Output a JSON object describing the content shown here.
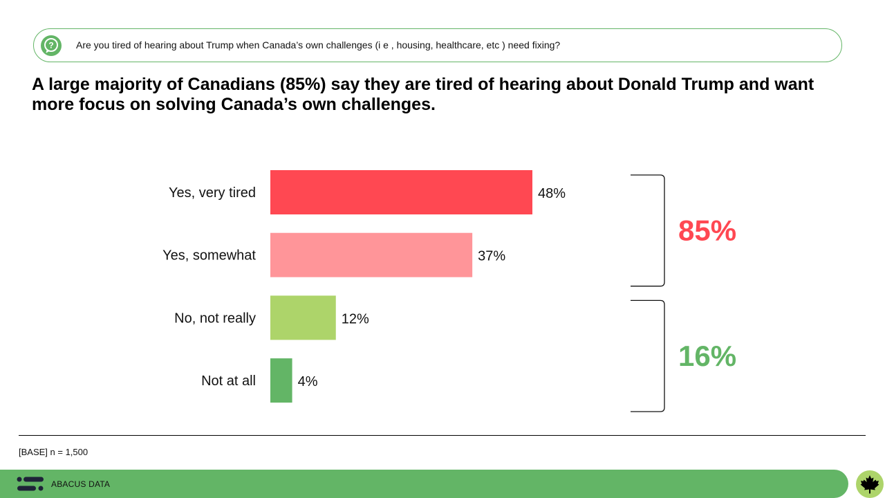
{
  "question": {
    "icon": "question-icon",
    "text": "Are you tired of hearing about Trump when Canada’s own challenges (i e , housing, healthcare, etc ) need fixing?"
  },
  "headline": "A large majority of Canadians (85%) say they are tired of hearing about Donald Trump and want more focus on solving Canada’s own challenges.",
  "chart_data": {
    "type": "bar",
    "orientation": "horizontal",
    "title": "",
    "xlabel": "",
    "ylabel": "",
    "xlim": [
      0,
      60
    ],
    "grid": false,
    "categories": [
      "Yes, very tired",
      "Yes, somewhat",
      "No, not really",
      "Not at all"
    ],
    "values": [
      48,
      37,
      12,
      4
    ],
    "value_labels": [
      "48%",
      "37%",
      "12%",
      "4%"
    ],
    "colors": [
      "#ff4852",
      "#ff9599",
      "#add46a",
      "#63b566"
    ],
    "groups": [
      {
        "label": "85%",
        "color": "#ff4852",
        "categories": [
          "Yes, very tired",
          "Yes, somewhat"
        ]
      },
      {
        "label": "16%",
        "color": "#63b566",
        "categories": [
          "No, not really",
          "Not at all"
        ]
      }
    ]
  },
  "footer": {
    "base_note": "[BASE] n = 1,500",
    "brand": "ABACUS DATA",
    "logo_icon": "abacus-logo-icon",
    "badge_icon": "maple-leaf-icon",
    "bar_color": "#63b566"
  }
}
